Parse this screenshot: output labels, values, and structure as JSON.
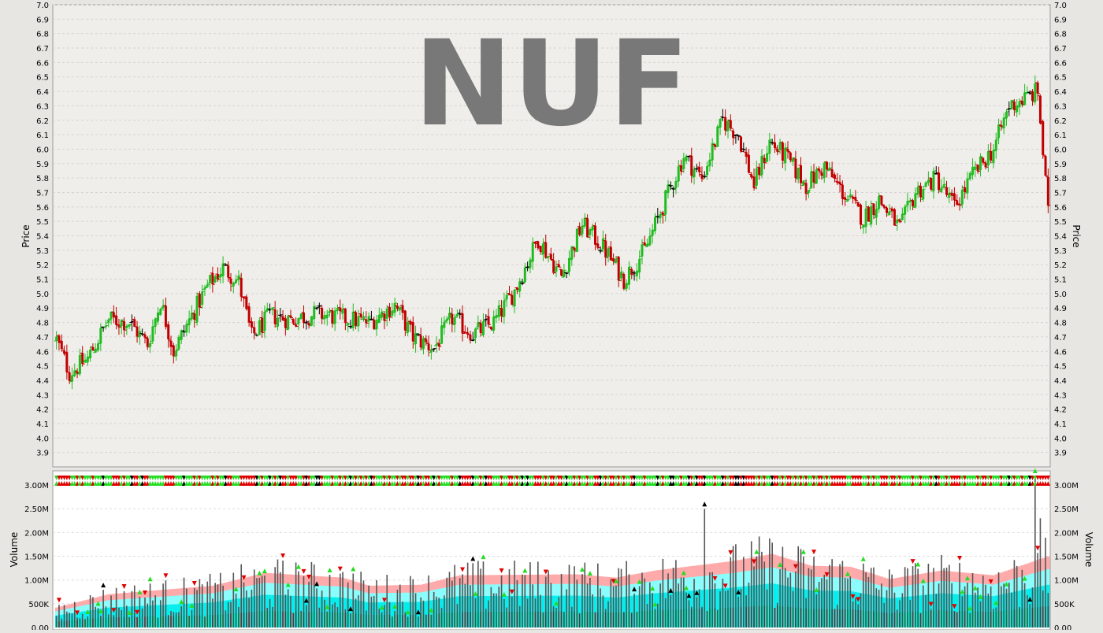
{
  "chart_data": [
    {
      "type": "ohlc",
      "title": "NUF",
      "ylabel": "Price",
      "ylim": [
        3.8,
        7.0
      ],
      "yticks": [
        "3.9",
        "4.0",
        "4.1",
        "4.2",
        "4.3",
        "4.4",
        "4.5",
        "4.6",
        "4.7",
        "4.8",
        "4.9",
        "5.0",
        "5.1",
        "5.2",
        "5.3",
        "5.4",
        "5.5",
        "5.6",
        "5.7",
        "5.8",
        "5.9",
        "6.0",
        "6.1",
        "6.2",
        "6.3",
        "6.4",
        "6.5",
        "6.6",
        "6.7",
        "6.8",
        "6.9",
        "7.0"
      ],
      "grid": true,
      "close_path": [
        [
          0,
          4.68
        ],
        [
          5,
          4.45
        ],
        [
          12,
          4.55
        ],
        [
          20,
          4.82
        ],
        [
          28,
          4.8
        ],
        [
          35,
          4.65
        ],
        [
          40,
          4.95
        ],
        [
          45,
          4.6
        ],
        [
          52,
          4.85
        ],
        [
          58,
          5.05
        ],
        [
          64,
          5.18
        ],
        [
          70,
          5.08
        ],
        [
          75,
          4.7
        ],
        [
          82,
          4.85
        ],
        [
          90,
          4.82
        ],
        [
          100,
          4.86
        ],
        [
          110,
          4.83
        ],
        [
          120,
          4.8
        ],
        [
          130,
          4.92
        ],
        [
          137,
          4.7
        ],
        [
          145,
          4.62
        ],
        [
          152,
          4.83
        ],
        [
          160,
          4.72
        ],
        [
          168,
          4.8
        ],
        [
          176,
          5.02
        ],
        [
          185,
          5.38
        ],
        [
          194,
          5.12
        ],
        [
          202,
          5.48
        ],
        [
          210,
          5.32
        ],
        [
          218,
          5.1
        ],
        [
          226,
          5.3
        ],
        [
          234,
          5.65
        ],
        [
          241,
          5.95
        ],
        [
          248,
          5.8
        ],
        [
          256,
          6.2
        ],
        [
          262,
          6.1
        ],
        [
          268,
          5.75
        ],
        [
          274,
          6.05
        ],
        [
          280,
          5.95
        ],
        [
          288,
          5.75
        ],
        [
          295,
          5.88
        ],
        [
          302,
          5.7
        ],
        [
          310,
          5.52
        ],
        [
          316,
          5.65
        ],
        [
          324,
          5.45
        ],
        [
          330,
          5.7
        ],
        [
          338,
          5.8
        ],
        [
          345,
          5.6
        ],
        [
          352,
          5.82
        ],
        [
          360,
          6.0
        ],
        [
          366,
          6.3
        ],
        [
          372,
          6.35
        ],
        [
          377,
          6.4
        ],
        [
          381,
          5.55
        ]
      ],
      "series": [
        {
          "name": "Up",
          "color": "#22bb22"
        },
        {
          "name": "Down",
          "color": "#c00000"
        },
        {
          "name": "Unchanged",
          "color": "#000000"
        }
      ]
    },
    {
      "type": "bar",
      "ylabel": "Volume",
      "ylim": [
        0,
        3300000
      ],
      "yticks": [
        {
          "value": 0,
          "label": "0.00"
        },
        {
          "value": 500000,
          "label": "500K"
        },
        {
          "value": 1000000,
          "label": "1.00M"
        },
        {
          "value": 1500000,
          "label": "1.50M"
        },
        {
          "value": 2000000,
          "label": "2.00M"
        },
        {
          "value": 2500000,
          "label": "2.50M"
        },
        {
          "value": 3000000,
          "label": "3.00M"
        }
      ],
      "avg_band_path": [
        [
          0,
          420000
        ],
        [
          20,
          700000
        ],
        [
          60,
          880000
        ],
        [
          80,
          1150000
        ],
        [
          110,
          1050000
        ],
        [
          120,
          880000
        ],
        [
          140,
          900000
        ],
        [
          155,
          1100000
        ],
        [
          200,
          1120000
        ],
        [
          215,
          1050000
        ],
        [
          230,
          1200000
        ],
        [
          260,
          1400000
        ],
        [
          275,
          1550000
        ],
        [
          290,
          1300000
        ],
        [
          305,
          1280000
        ],
        [
          320,
          1020000
        ],
        [
          340,
          1200000
        ],
        [
          360,
          1100000
        ],
        [
          381,
          1500000
        ]
      ],
      "spikes": [
        {
          "bar": 249,
          "value": 2500000,
          "direction": "up"
        },
        {
          "bar": 376,
          "value": 3200000,
          "direction": "down"
        },
        {
          "bar": 378,
          "value": 2300000,
          "direction": "down"
        }
      ],
      "colors": {
        "bar": "#555555",
        "band_outer": "#ffaaaa",
        "band_mid": "#88ffff",
        "band_inner": "#00eeee"
      }
    }
  ]
}
